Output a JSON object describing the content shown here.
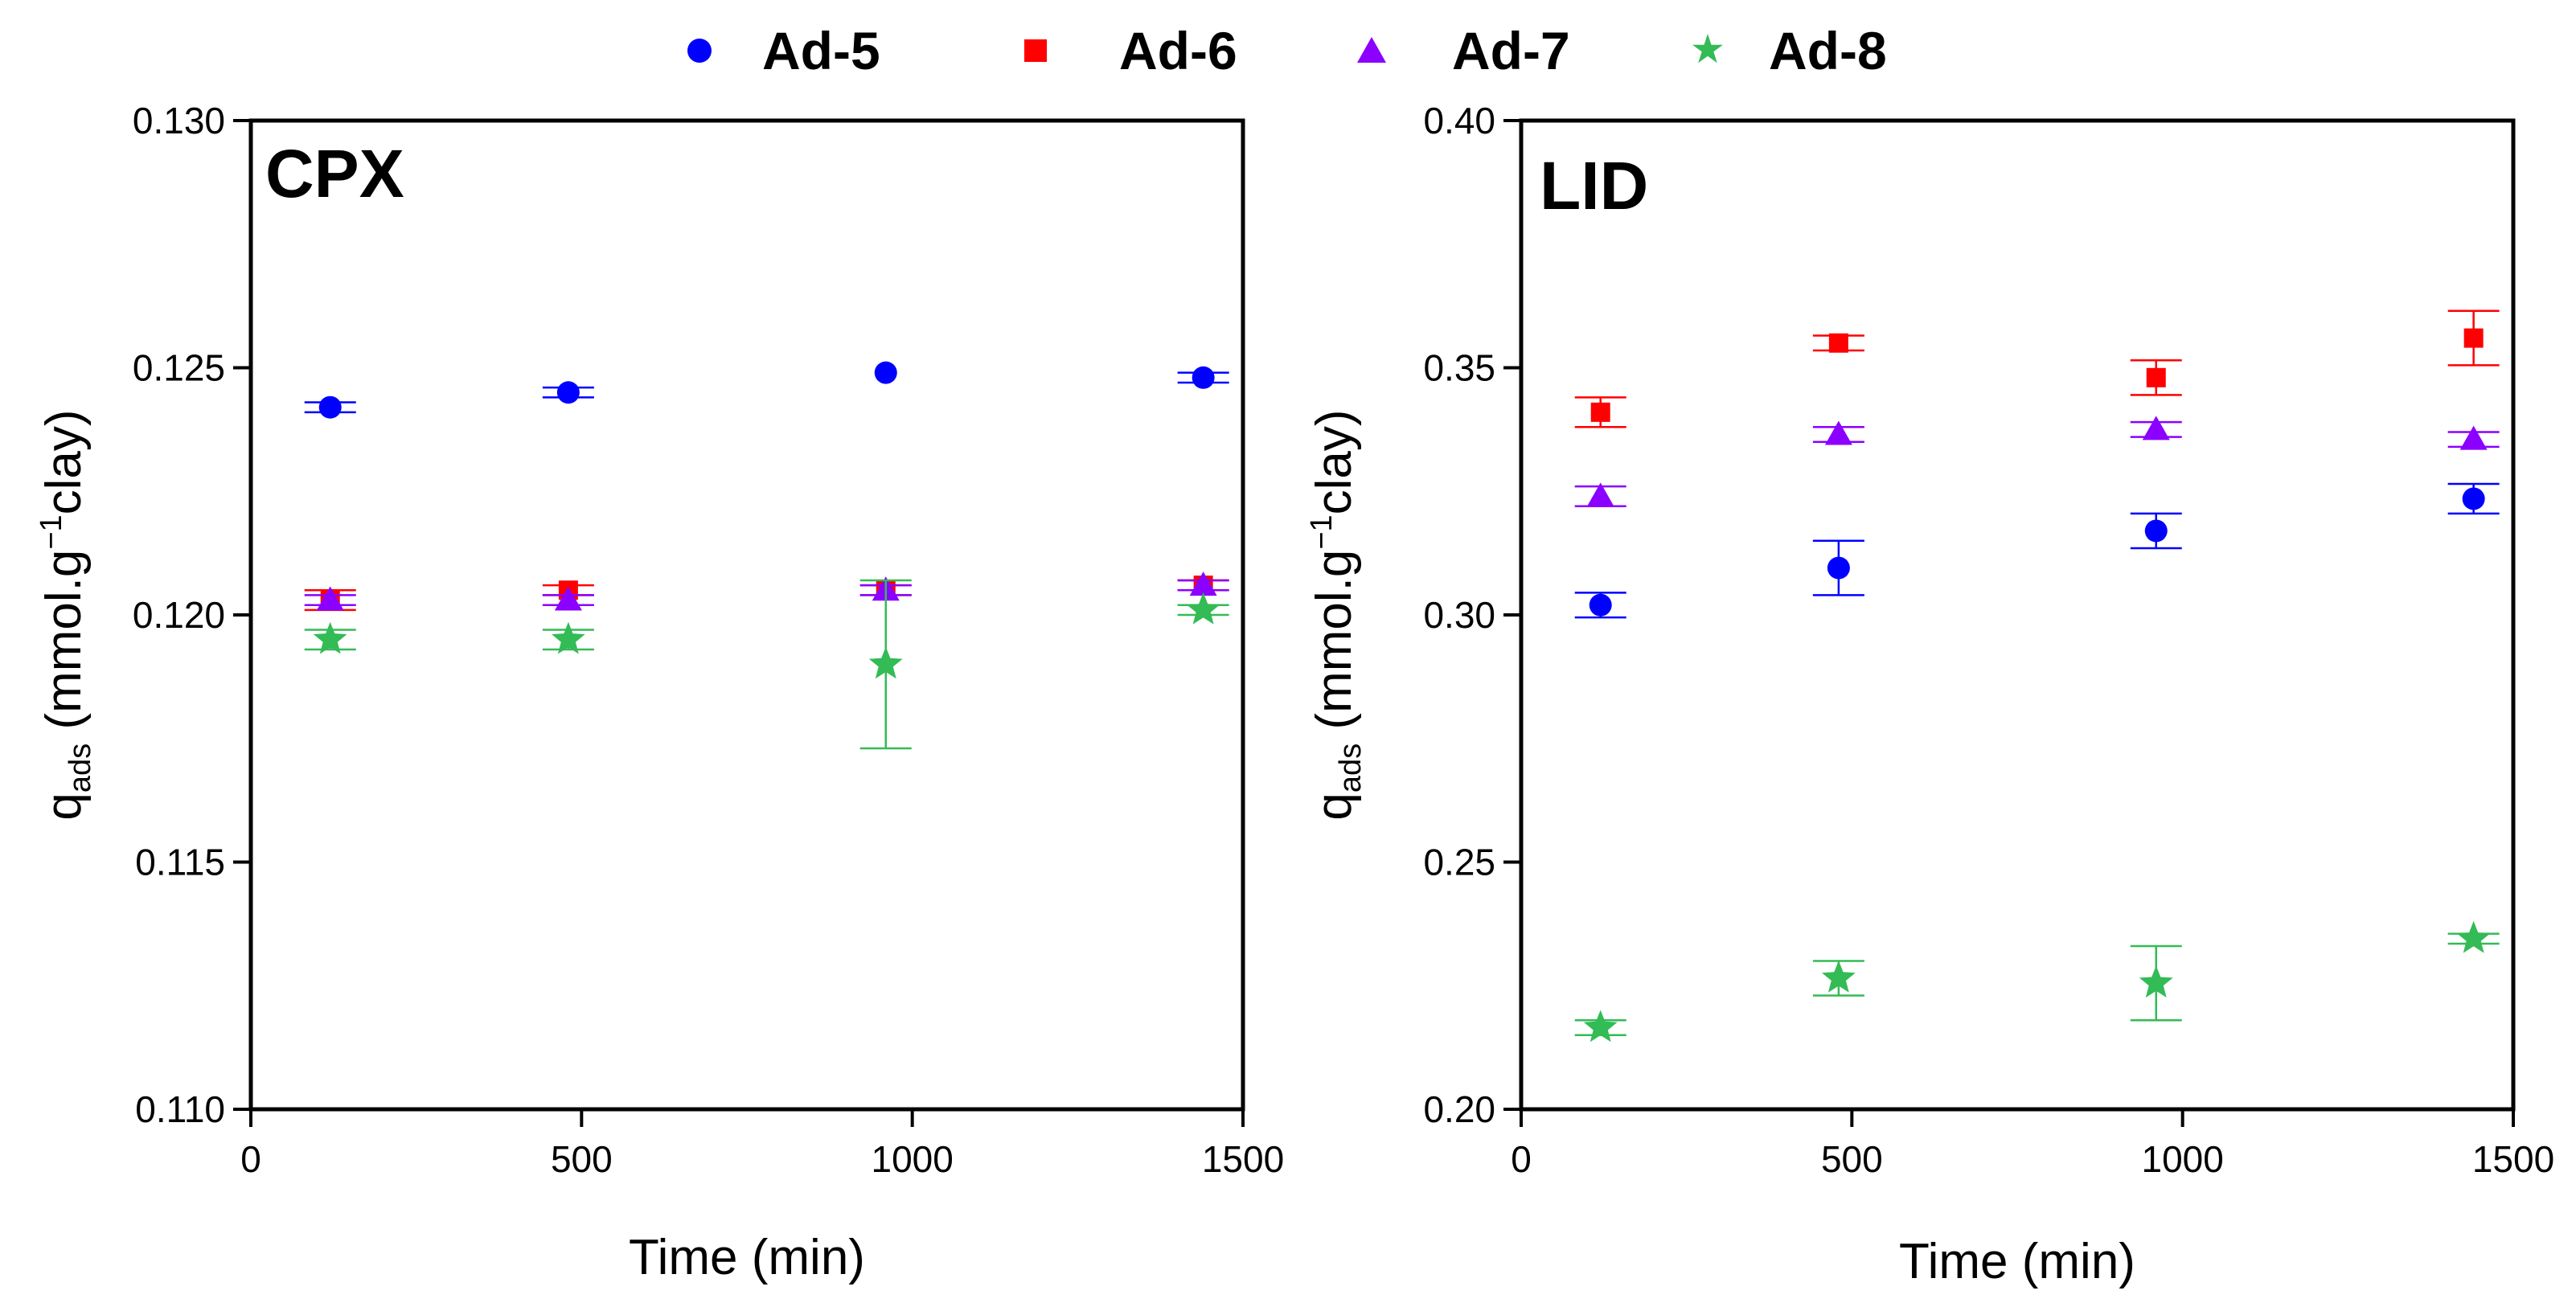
{
  "chart_data": {
    "type": "scatter",
    "legend": {
      "placement": "top",
      "entries": [
        {
          "name": "Ad-5",
          "color": "#0000ff",
          "marker": "circle"
        },
        {
          "name": "Ad-6",
          "color": "#ff0000",
          "marker": "square"
        },
        {
          "name": "Ad-7",
          "color": "#8b00ff",
          "marker": "triangle"
        },
        {
          "name": "Ad-8",
          "color": "#33bb55",
          "marker": "star"
        }
      ]
    },
    "panels": [
      {
        "label": "CPX",
        "xlabel": "Time (min)",
        "ylabel": {
          "main": "q",
          "sub": "ads",
          "rest1": " (mmol.g",
          "sup": "−1",
          "rest2": "clay)"
        },
        "xlim": [
          0,
          1500
        ],
        "ylim": [
          0.11,
          0.13
        ],
        "xticks": [
          0,
          500,
          1000,
          1500
        ],
        "xtick_labels": [
          "0",
          "500",
          "1000",
          "1500"
        ],
        "yticks": [
          0.11,
          0.115,
          0.12,
          0.125,
          0.13
        ],
        "ytick_labels": [
          "0.110",
          "0.115",
          "0.120",
          "0.125",
          "0.130"
        ],
        "series": [
          {
            "name": "Ad-5",
            "x": [
              120,
              480,
              960,
              1440
            ],
            "y": [
              0.1242,
              0.1245,
              0.1249,
              0.1248
            ],
            "err": [
              0.0001,
              0.0001,
              0,
              0.0001
            ]
          },
          {
            "name": "Ad-6",
            "x": [
              120,
              480,
              960,
              1440
            ],
            "y": [
              0.1203,
              0.1205,
              0.1205,
              0.1206
            ],
            "err": [
              0.0002,
              0.0001,
              0.0001,
              0.0001
            ]
          },
          {
            "name": "Ad-7",
            "x": [
              120,
              480,
              960,
              1440
            ],
            "y": [
              0.1203,
              0.1203,
              0.1205,
              0.1206
            ],
            "err": [
              0.0001,
              0.0001,
              0.0001,
              0.0001
            ]
          },
          {
            "name": "Ad-8",
            "x": [
              120,
              480,
              960,
              1440
            ],
            "y": [
              0.1195,
              0.1195,
              0.119,
              0.1201
            ],
            "err": [
              0.0002,
              0.0002,
              0.0017,
              0.0001
            ]
          }
        ]
      },
      {
        "label": "LID",
        "xlabel": "Time (min)",
        "ylabel": {
          "main": "q",
          "sub": "ads",
          "rest1": " (mmol.g",
          "sup": "−1",
          "rest2": "clay)"
        },
        "xlim": [
          0,
          1500
        ],
        "ylim": [
          0.2,
          0.4
        ],
        "xticks": [
          0,
          500,
          1000,
          1500
        ],
        "xtick_labels": [
          "0",
          "500",
          "1000",
          "1500"
        ],
        "yticks": [
          0.2,
          0.25,
          0.3,
          0.35,
          0.4
        ],
        "ytick_labels": [
          "0.20",
          "0.25",
          "0.30",
          "0.35",
          "0.40"
        ],
        "series": [
          {
            "name": "Ad-5",
            "x": [
              120,
              480,
              960,
              1440
            ],
            "y": [
              0.302,
              0.3095,
              0.317,
              0.3235
            ],
            "err": [
              0.0025,
              0.0055,
              0.0035,
              0.003
            ]
          },
          {
            "name": "Ad-6",
            "x": [
              120,
              480,
              960,
              1440
            ],
            "y": [
              0.341,
              0.355,
              0.348,
              0.356
            ],
            "err": [
              0.003,
              0.0015,
              0.0035,
              0.0055
            ]
          },
          {
            "name": "Ad-7",
            "x": [
              120,
              480,
              960,
              1440
            ],
            "y": [
              0.324,
              0.3365,
              0.3375,
              0.3355
            ],
            "err": [
              0.002,
              0.0015,
              0.0015,
              0.0015
            ]
          },
          {
            "name": "Ad-8",
            "x": [
              120,
              480,
              960,
              1440
            ],
            "y": [
              0.2165,
              0.2265,
              0.2255,
              0.2345
            ],
            "err": [
              0.0015,
              0.0035,
              0.0075,
              0.001
            ]
          }
        ]
      }
    ]
  }
}
